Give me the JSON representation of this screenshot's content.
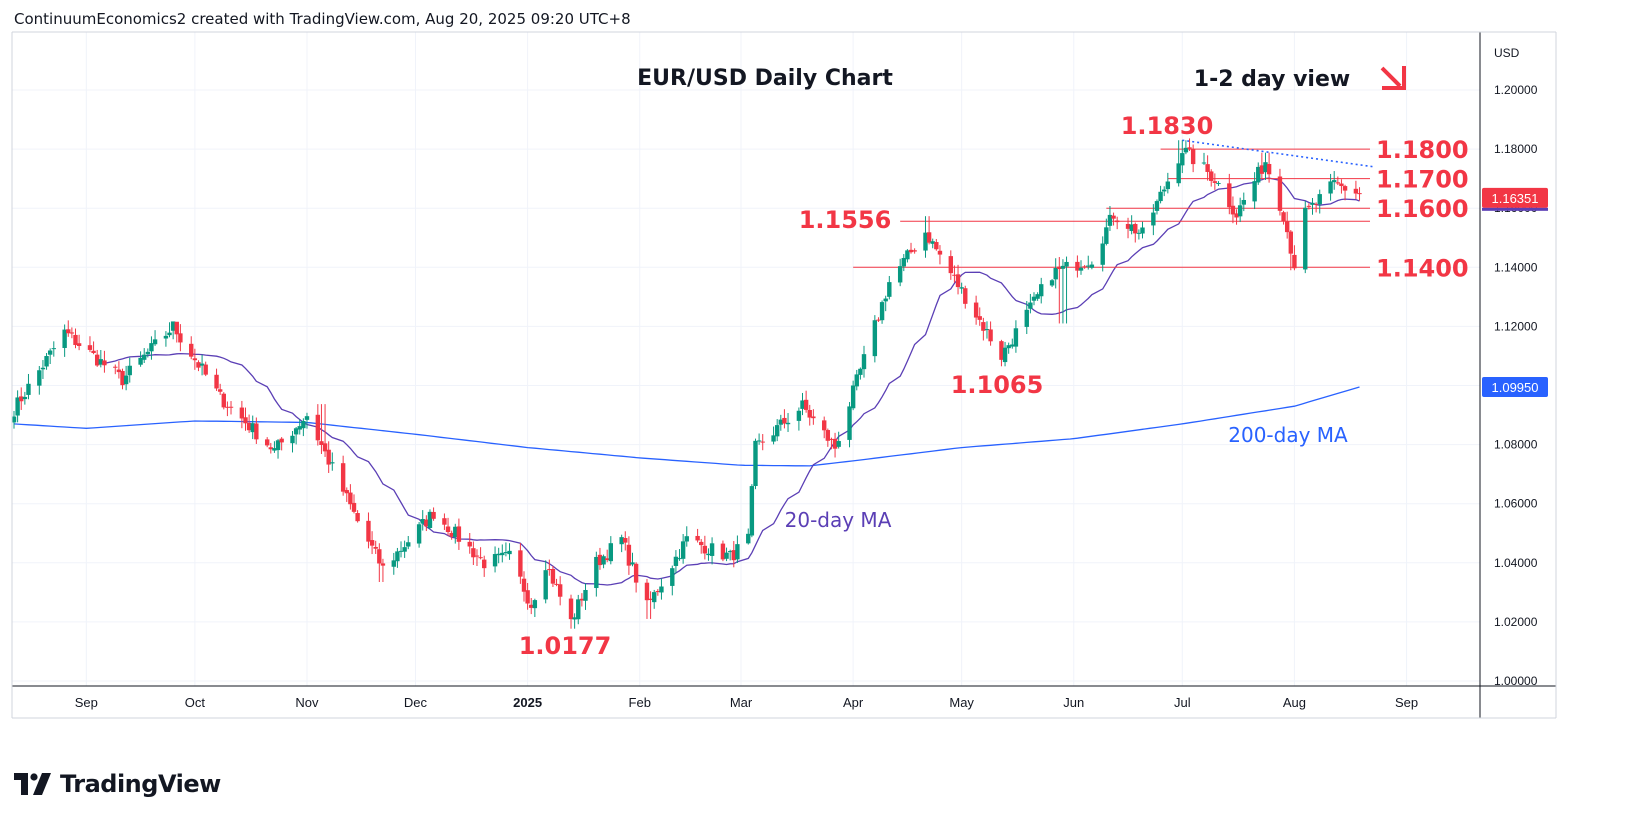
{
  "header": {
    "attribution": "ContinuumEconomics2 created with TradingView.com, Aug 20, 2025 09:20 UTC+8"
  },
  "footer": {
    "logo_text": "TradingView"
  },
  "colors": {
    "up": "#089981",
    "down": "#f23645",
    "ma20": "#5b3fb5",
    "ma200": "#2962ff",
    "level_line": "#f23645",
    "annotation": "#f23645",
    "ma200_label": "#2962ff",
    "ma20_label": "#5b3fb5",
    "grid": "#f0f3fa"
  },
  "chart_data": {
    "type": "candlestick",
    "title": "EUR/USD Daily Chart",
    "view_label": "1-2 day view",
    "currency": "USD",
    "ylim": [
      1.0,
      1.2
    ],
    "y_ticks": [
      "1.00000",
      "1.02000",
      "1.04000",
      "1.06000",
      "1.08000",
      "1.10000",
      "1.12000",
      "1.14000",
      "1.16000",
      "1.18000",
      "1.20000"
    ],
    "x_ticks": [
      {
        "label": "Sep",
        "date": "2024-09-01",
        "bold": false
      },
      {
        "label": "Oct",
        "date": "2024-10-01",
        "bold": false
      },
      {
        "label": "Nov",
        "date": "2024-11-01",
        "bold": false
      },
      {
        "label": "Dec",
        "date": "2024-12-01",
        "bold": false
      },
      {
        "label": "2025",
        "date": "2025-01-01",
        "bold": true
      },
      {
        "label": "Feb",
        "date": "2025-02-01",
        "bold": false
      },
      {
        "label": "Mar",
        "date": "2025-03-01",
        "bold": false
      },
      {
        "label": "Apr",
        "date": "2025-04-01",
        "bold": false
      },
      {
        "label": "May",
        "date": "2025-05-01",
        "bold": false
      },
      {
        "label": "Jun",
        "date": "2025-06-01",
        "bold": false
      },
      {
        "label": "Jul",
        "date": "2025-07-01",
        "bold": false
      },
      {
        "label": "Aug",
        "date": "2025-08-01",
        "bold": false
      },
      {
        "label": "Sep",
        "date": "2025-09-01",
        "bold": false
      }
    ],
    "price_anchors": [
      [
        "2024-08-12",
        1.092
      ],
      [
        "2024-08-26",
        1.118
      ],
      [
        "2024-09-11",
        1.102
      ],
      [
        "2024-09-25",
        1.12
      ],
      [
        "2024-10-08",
        1.096
      ],
      [
        "2024-10-23",
        1.078
      ],
      [
        "2024-11-01",
        1.09
      ],
      [
        "2024-11-15",
        1.054
      ],
      [
        "2024-11-22",
        1.038
      ],
      [
        "2024-12-06",
        1.057
      ],
      [
        "2024-12-20",
        1.04
      ],
      [
        "2024-12-27",
        1.042
      ],
      [
        "2025-01-02",
        1.026
      ],
      [
        "2025-01-06",
        1.04
      ],
      [
        "2025-01-13",
        1.02
      ],
      [
        "2025-01-20",
        1.04
      ],
      [
        "2025-01-27",
        1.048
      ],
      [
        "2025-02-03",
        1.025
      ],
      [
        "2025-02-14",
        1.048
      ],
      [
        "2025-02-26",
        1.042
      ],
      [
        "2025-03-03",
        1.048
      ],
      [
        "2025-03-05",
        1.079
      ],
      [
        "2025-03-18",
        1.093
      ],
      [
        "2025-03-27",
        1.079
      ],
      [
        "2025-04-03",
        1.105
      ],
      [
        "2025-04-11",
        1.135
      ],
      [
        "2025-04-21",
        1.152
      ],
      [
        "2025-05-01",
        1.132
      ],
      [
        "2025-05-12",
        1.11
      ],
      [
        "2025-05-26",
        1.138
      ],
      [
        "2025-06-06",
        1.143
      ],
      [
        "2025-06-12",
        1.158
      ],
      [
        "2025-06-20",
        1.151
      ],
      [
        "2025-07-01",
        1.18
      ],
      [
        "2025-07-10",
        1.17
      ],
      [
        "2025-07-16",
        1.158
      ],
      [
        "2025-07-24",
        1.176
      ],
      [
        "2025-07-29",
        1.158
      ],
      [
        "2025-08-01",
        1.141
      ],
      [
        "2025-08-04",
        1.158
      ],
      [
        "2025-08-12",
        1.168
      ],
      [
        "2025-08-19",
        1.165
      ]
    ],
    "wick_lows": [
      [
        "2024-11-22",
        1.0335
      ],
      [
        "2025-01-13",
        1.0177
      ],
      [
        "2025-02-03",
        1.021
      ],
      [
        "2025-05-12",
        1.1065
      ],
      [
        "2025-05-29",
        1.121
      ],
      [
        "2025-08-01",
        1.139
      ]
    ],
    "wick_highs": [
      [
        "2024-09-25",
        1.1214
      ],
      [
        "2024-11-05",
        1.0937
      ],
      [
        "2025-04-21",
        1.1573
      ],
      [
        "2025-07-01",
        1.183
      ],
      [
        "2025-07-24",
        1.1788
      ]
    ],
    "last_price": "1.16351",
    "last_price_value": 1.16351,
    "ma200_price": "1.09950",
    "ma200_value": 1.0995,
    "ma200_anchors": [
      [
        "2024-08-12",
        1.087
      ],
      [
        "2024-09-01",
        1.0855
      ],
      [
        "2024-10-01",
        1.088
      ],
      [
        "2024-11-01",
        1.0875
      ],
      [
        "2024-12-01",
        1.0835
      ],
      [
        "2025-01-01",
        1.079
      ],
      [
        "2025-02-01",
        1.0755
      ],
      [
        "2025-03-01",
        1.073
      ],
      [
        "2025-03-20",
        1.0728
      ],
      [
        "2025-04-01",
        1.0745
      ],
      [
        "2025-05-01",
        1.079
      ],
      [
        "2025-06-01",
        1.082
      ],
      [
        "2025-07-01",
        1.087
      ],
      [
        "2025-08-01",
        1.093
      ],
      [
        "2025-08-19",
        1.0995
      ]
    ],
    "ma20_label": "20-day MA",
    "ma200_label": "200-day MA",
    "levels": [
      {
        "label": "1.1800",
        "value": 1.18,
        "from": "2025-06-25"
      },
      {
        "label": "1.1700",
        "value": 1.17,
        "from": "2025-06-27"
      },
      {
        "label": "1.1600",
        "value": 1.16,
        "from": "2025-06-10"
      },
      {
        "label": "1.1556",
        "value": 1.1556,
        "from": "2025-04-14"
      },
      {
        "label": "1.1400",
        "value": 1.14,
        "from": "2025-04-01"
      }
    ],
    "annotations": [
      {
        "text": "1.1830",
        "date": "2025-06-28",
        "value": 1.183
      },
      {
        "text": "1.1556",
        "date": "2025-03-19",
        "value": 1.1556
      },
      {
        "text": "1.1065",
        "date": "2025-05-11",
        "value": 1.1065
      },
      {
        "text": "1.0177",
        "date": "2025-01-03",
        "value": 1.0177
      }
    ],
    "trendline": [
      [
        "2025-07-01",
        1.183
      ],
      [
        "2025-08-23",
        1.174
      ]
    ]
  }
}
